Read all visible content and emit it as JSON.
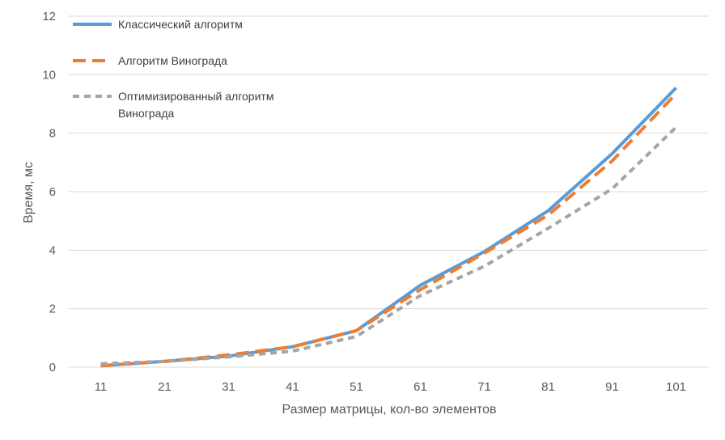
{
  "chart_data": {
    "type": "line",
    "title": "",
    "xlabel": "Размер матрицы, кол-во элементов",
    "ylabel": "Время, мс",
    "x": [
      11,
      21,
      31,
      41,
      51,
      61,
      71,
      81,
      91,
      101
    ],
    "ylim": [
      0,
      12
    ],
    "yticks": [
      0,
      2,
      4,
      6,
      8,
      10,
      12
    ],
    "grid": true,
    "legend": "top-left",
    "series": [
      {
        "name": "Классический алгоритм",
        "color": "#5B9BD5",
        "dash": "solid",
        "values": [
          0.05,
          0.2,
          0.38,
          0.7,
          1.25,
          2.8,
          3.95,
          5.35,
          7.3,
          9.55
        ]
      },
      {
        "name": "Алгоритм Винограда",
        "color": "#ED7D31",
        "dash": "dashed",
        "values": [
          0.05,
          0.2,
          0.42,
          0.7,
          1.25,
          2.65,
          3.9,
          5.2,
          7.05,
          9.35
        ]
      },
      {
        "name_lines": [
          "Оптимизированный алгоритм",
          "Винограда"
        ],
        "name": "Оптимизированный алгоритм Винограда",
        "color": "#A5A5A5",
        "dash": "dotted-dash",
        "values": [
          0.12,
          0.2,
          0.35,
          0.55,
          1.05,
          2.45,
          3.45,
          4.75,
          6.1,
          8.2
        ]
      }
    ]
  }
}
